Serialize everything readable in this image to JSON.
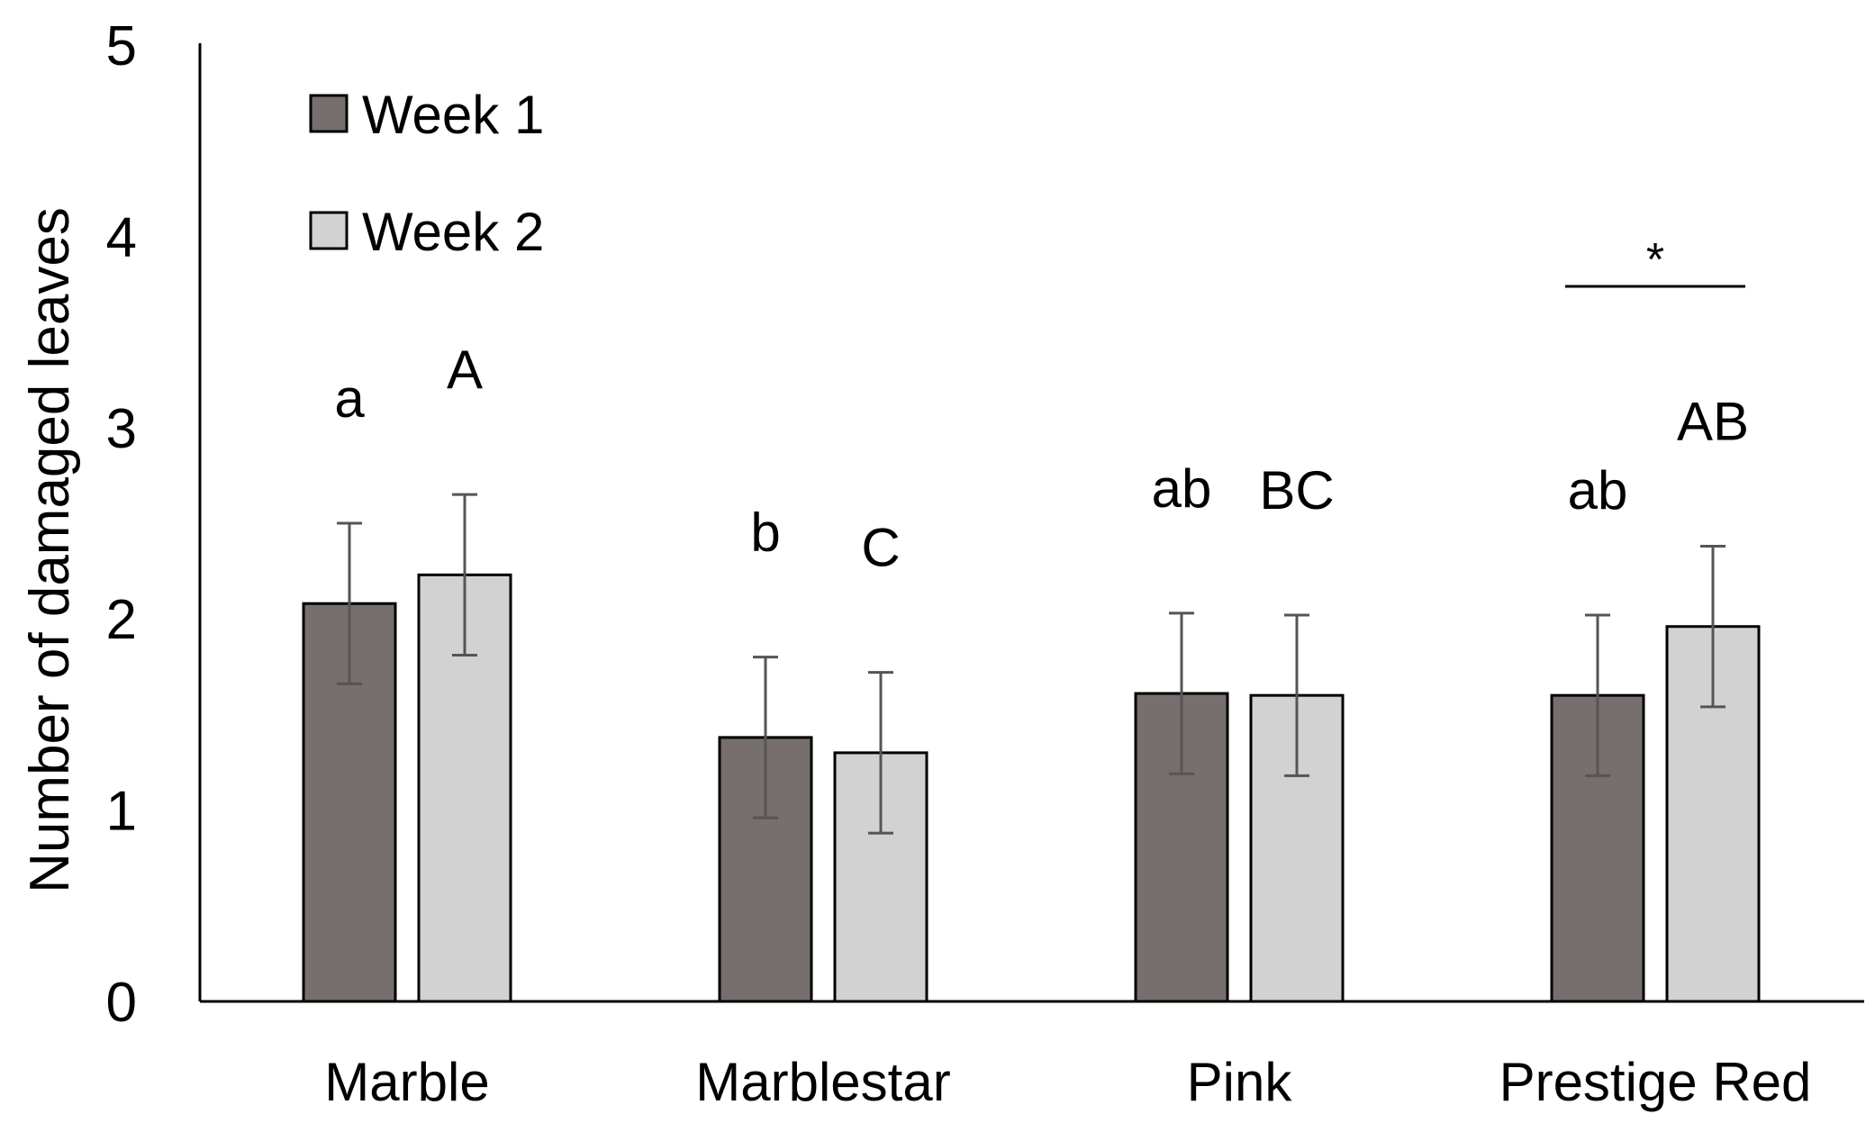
{
  "chart_data": {
    "type": "bar",
    "title": "",
    "xlabel": "",
    "ylabel": "Number of damaged leaves",
    "ylim": [
      0,
      5
    ],
    "yticks": [
      "0",
      "1",
      "2",
      "3",
      "4",
      "5"
    ],
    "grid": false,
    "legend_position": "top-left",
    "categories": [
      "Marble",
      "Marblestar",
      "Pink",
      "Prestige Red"
    ],
    "series": [
      {
        "name": "Week 1",
        "color": "#776e6e",
        "values": [
          2.08,
          1.38,
          1.61,
          1.6
        ],
        "errors": [
          0.42,
          0.42,
          0.42,
          0.42
        ],
        "letters": [
          "a",
          "b",
          "ab",
          "ab"
        ]
      },
      {
        "name": "Week 2",
        "color": "#d3d2d2",
        "values": [
          2.23,
          1.3,
          1.6,
          1.96
        ],
        "errors": [
          0.42,
          0.42,
          0.42,
          0.42
        ],
        "letters": [
          "A",
          "C",
          "BC",
          "AB"
        ]
      }
    ],
    "annotations": [
      {
        "text": "*",
        "category": "Prestige Red",
        "note": "significant difference between weeks"
      }
    ]
  }
}
